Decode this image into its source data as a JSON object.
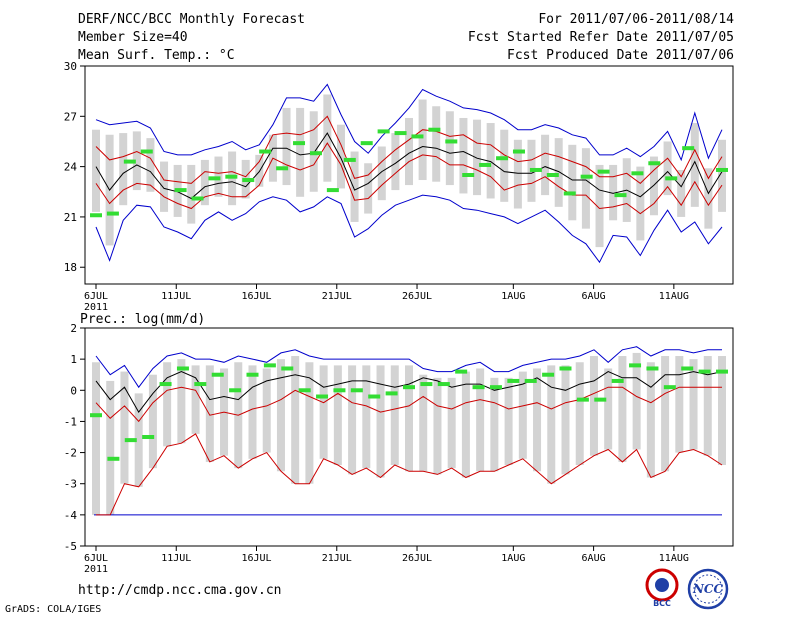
{
  "header": {
    "title": "DERF/NCC/BCC Monthly Forecast",
    "member_size": "Member Size=40",
    "variable1": "Mean Surf. Temp.: °C",
    "period": "For 2011/07/06-2011/08/14",
    "started": "Fcst Started Refer Date 2011/07/05",
    "produced": "Fcst Produced Date 2011/07/06"
  },
  "panel2_label": "Prec.: log(mm/d)",
  "footer": {
    "url": "http://cmdp.ncc.cma.gov.cn",
    "credit": "GrADS: COLA/IGES",
    "logo_bcc": "BCC",
    "logo_ncc": "NCC"
  },
  "colors": {
    "max_min": "#0000cc",
    "quartile": "#cc0000",
    "median": "#000000",
    "box": "#d3d3d3",
    "observed": "#33dd33"
  },
  "x_ticks": [
    "6JUL",
    "11JUL",
    "16JUL",
    "21JUL",
    "26JUL",
    "1AUG",
    "6AUG",
    "11AUG"
  ],
  "x_year": "2011",
  "chart_data": [
    {
      "type": "line",
      "name": "temperature",
      "ylabel": "Mean Surf. Temp.: °C",
      "ylim": [
        17,
        30
      ],
      "yticks": [
        18,
        21,
        24,
        27,
        30
      ],
      "x_tick_days": [
        0,
        5,
        10,
        15,
        20,
        26,
        31,
        36
      ],
      "days": 40,
      "series": [
        {
          "name": "max",
          "values": [
            26.8,
            26.5,
            26.6,
            26.7,
            26.3,
            24.9,
            24.7,
            24.7,
            25.0,
            25.2,
            25.5,
            25.0,
            25.3,
            26.5,
            28.1,
            28.1,
            27.9,
            28.9,
            27.1,
            25.5,
            24.8,
            25.8,
            26.6,
            27.5,
            28.6,
            28.2,
            27.9,
            27.5,
            27.4,
            27.2,
            26.8,
            26.2,
            26.2,
            26.5,
            26.3,
            25.9,
            25.7,
            24.7,
            24.7,
            25.1,
            24.6,
            25.2,
            26.1,
            24.4,
            27.2,
            24.5,
            26.2
          ]
        },
        {
          "name": "q3",
          "values": [
            25.2,
            24.4,
            24.6,
            24.9,
            24.5,
            23.2,
            23.1,
            23.0,
            23.7,
            23.6,
            23.7,
            23.4,
            24.3,
            25.9,
            26.0,
            25.9,
            26.2,
            27.0,
            25.3,
            23.3,
            23.5,
            24.3,
            25.0,
            25.6,
            26.2,
            26.1,
            25.8,
            25.9,
            25.4,
            25.3,
            24.7,
            24.3,
            24.4,
            24.8,
            24.6,
            24.3,
            24.0,
            23.4,
            23.4,
            23.6,
            23.0,
            23.8,
            24.5,
            23.4,
            25.0,
            23.3,
            24.6
          ]
        },
        {
          "name": "median",
          "values": [
            24.0,
            22.6,
            23.6,
            24.1,
            23.7,
            22.7,
            22.5,
            22.1,
            22.8,
            23.0,
            23.1,
            22.8,
            23.7,
            25.1,
            25.1,
            24.7,
            24.8,
            26.0,
            24.5,
            22.6,
            23.0,
            23.7,
            24.2,
            24.8,
            25.2,
            25.1,
            24.8,
            24.9,
            24.5,
            24.3,
            23.7,
            23.6,
            23.6,
            24.0,
            23.7,
            23.2,
            23.2,
            22.6,
            22.4,
            22.6,
            22.2,
            22.9,
            23.7,
            22.8,
            24.3,
            22.4,
            23.7
          ]
        },
        {
          "name": "q1",
          "values": [
            23.0,
            21.8,
            22.6,
            23.0,
            22.9,
            22.2,
            21.8,
            21.5,
            22.2,
            22.4,
            22.2,
            22.2,
            22.9,
            24.5,
            24.1,
            23.8,
            24.1,
            25.4,
            24.1,
            22.0,
            22.1,
            22.9,
            23.6,
            24.3,
            24.7,
            24.6,
            24.1,
            24.1,
            23.8,
            23.4,
            22.6,
            22.9,
            23.0,
            23.4,
            22.8,
            22.3,
            22.3,
            21.5,
            21.6,
            21.8,
            21.2,
            21.8,
            22.8,
            21.7,
            23.1,
            21.7,
            22.9
          ]
        },
        {
          "name": "min",
          "values": [
            20.4,
            18.4,
            20.8,
            21.7,
            21.6,
            20.4,
            20.1,
            19.7,
            20.8,
            21.3,
            20.8,
            21.2,
            21.9,
            22.2,
            22.0,
            21.3,
            21.6,
            22.2,
            21.8,
            19.8,
            20.3,
            21.1,
            21.7,
            22.0,
            22.3,
            22.2,
            22.0,
            21.5,
            21.4,
            21.2,
            21.0,
            20.6,
            21.0,
            21.4,
            20.7,
            19.9,
            19.4,
            18.3,
            19.9,
            19.8,
            18.7,
            20.2,
            21.4,
            20.1,
            20.7,
            19.4,
            20.4
          ]
        },
        {
          "name": "observed",
          "values": [
            21.1,
            21.2,
            24.3,
            24.9,
            null,
            22.6,
            22.1,
            23.3,
            23.4,
            23.2,
            24.9,
            23.9,
            25.4,
            24.8,
            22.6,
            24.4,
            25.4,
            26.1,
            26.0,
            25.8,
            26.2,
            25.5,
            23.5,
            24.1,
            24.5,
            24.9,
            23.8,
            23.5,
            22.4,
            23.4,
            23.7,
            22.3,
            23.6,
            24.2,
            23.3,
            25.1,
            null,
            23.8
          ]
        }
      ]
    },
    {
      "type": "line",
      "name": "precipitation",
      "ylabel": "Prec.: log(mm/d)",
      "ylim": [
        -5,
        2
      ],
      "yticks": [
        -5,
        -4,
        -3,
        -2,
        -1,
        0,
        1,
        2
      ],
      "x_tick_days": [
        0,
        5,
        10,
        15,
        20,
        26,
        31,
        36
      ],
      "days": 40,
      "series": [
        {
          "name": "max",
          "values": [
            1.1,
            0.5,
            0.8,
            0.1,
            0.7,
            1.1,
            1.2,
            1.0,
            1.0,
            0.9,
            1.1,
            1.0,
            0.9,
            1.2,
            1.3,
            1.1,
            1.0,
            1.0,
            1.0,
            1.0,
            1.0,
            1.0,
            1.0,
            0.7,
            0.6,
            0.6,
            0.8,
            0.9,
            0.6,
            0.6,
            0.8,
            0.9,
            1.0,
            1.0,
            1.1,
            1.3,
            0.9,
            1.3,
            1.4,
            1.1,
            1.3,
            1.3,
            1.2,
            1.3,
            1.3
          ]
        },
        {
          "name": "median",
          "values": [
            0.3,
            -0.3,
            0.1,
            -0.7,
            -0.1,
            0.4,
            0.6,
            0.4,
            -0.3,
            -0.2,
            -0.3,
            0.1,
            0.3,
            0.4,
            0.5,
            0.4,
            0.1,
            0.2,
            0.3,
            0.3,
            0.2,
            0.1,
            0.2,
            0.4,
            0.3,
            0.1,
            0.2,
            0.2,
            0.0,
            0.1,
            0.2,
            0.4,
            0.1,
            0.0,
            0.2,
            0.3,
            0.6,
            0.4,
            0.4,
            0.1,
            0.5,
            0.5,
            0.6,
            0.5,
            0.6
          ]
        },
        {
          "name": "q1",
          "values": [
            -0.4,
            -0.9,
            -0.5,
            -1.0,
            -0.4,
            0.0,
            0.1,
            0.0,
            -0.8,
            -0.7,
            -0.8,
            -0.6,
            -0.5,
            -0.3,
            0.0,
            -0.2,
            -0.4,
            -0.1,
            -0.4,
            -0.5,
            -0.7,
            -0.6,
            -0.5,
            -0.2,
            -0.5,
            -0.6,
            -0.4,
            -0.3,
            -0.4,
            -0.6,
            -0.5,
            -0.4,
            -0.6,
            -0.4,
            -0.3,
            -0.1,
            0.1,
            0.1,
            -0.2,
            -0.4,
            -0.1,
            0.1,
            0.1,
            0.1,
            0.1
          ]
        },
        {
          "name": "q0",
          "values": [
            -4.0,
            -4.0,
            -3.0,
            -3.1,
            -2.5,
            -1.8,
            -1.7,
            -1.4,
            -2.3,
            -2.1,
            -2.5,
            -2.2,
            -2.0,
            -2.6,
            -3.0,
            -3.0,
            -2.2,
            -2.4,
            -2.7,
            -2.5,
            -2.8,
            -2.4,
            -2.6,
            -2.6,
            -2.7,
            -2.5,
            -2.8,
            -2.6,
            -2.6,
            -2.4,
            -2.2,
            -2.6,
            -3.0,
            -2.7,
            -2.4,
            -2.1,
            -1.9,
            -2.3,
            -1.9,
            -2.8,
            -2.6,
            -2.0,
            -1.9,
            -2.1,
            -2.4
          ]
        },
        {
          "name": "floor",
          "values": [
            -4.0,
            -4.0
          ]
        },
        {
          "name": "observed",
          "values": [
            -0.8,
            -2.2,
            -1.6,
            -1.5,
            0.2,
            0.7,
            0.2,
            0.5,
            0.0,
            0.5,
            0.8,
            0.7,
            0.0,
            -0.2,
            0.0,
            0.0,
            -0.2,
            -0.1,
            0.1,
            0.2,
            0.2,
            0.6,
            0.1,
            0.1,
            0.3,
            0.3,
            0.5,
            0.7,
            -0.3,
            -0.3,
            0.3,
            0.8,
            0.7,
            0.1,
            0.7,
            0.6,
            0.6
          ]
        }
      ]
    }
  ]
}
